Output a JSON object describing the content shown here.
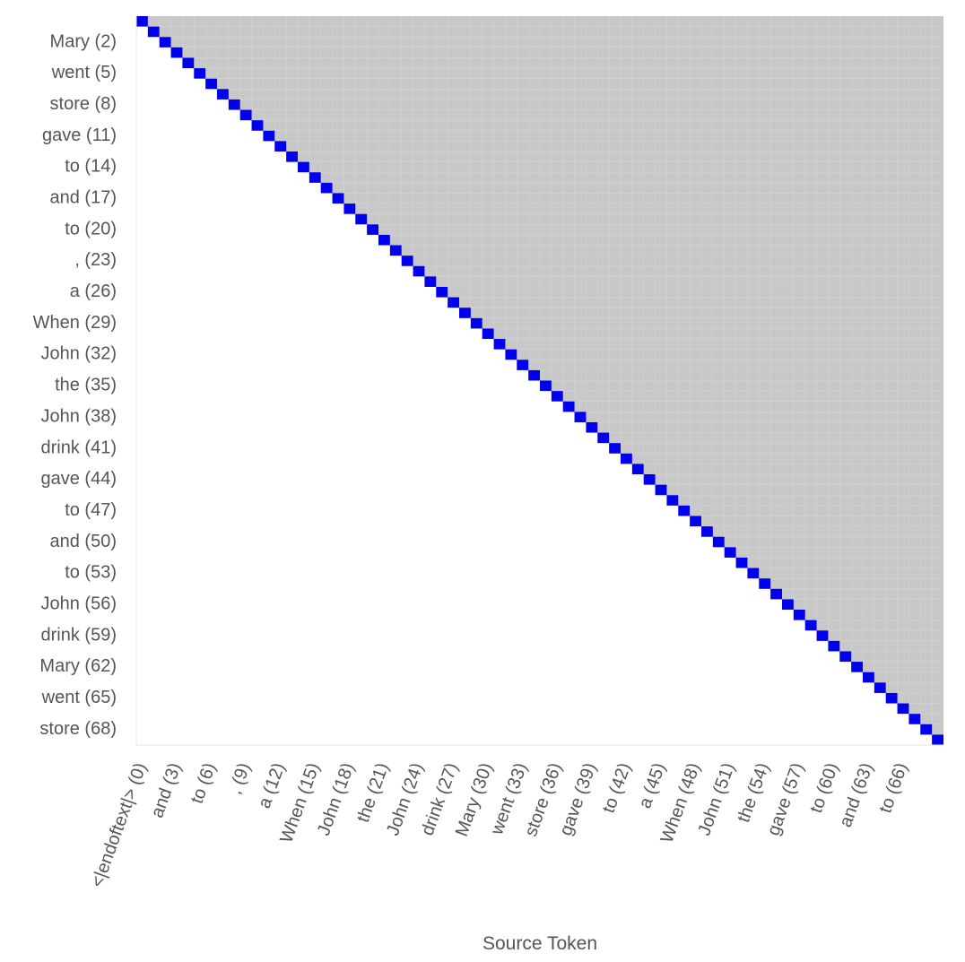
{
  "chart_data": {
    "type": "heatmap",
    "title": "",
    "xlabel": "Source Token",
    "ylabel": "",
    "size": 70,
    "diagonal_value": 1,
    "colors": {
      "diagonal": "#0000ee",
      "masked": "#c8c8c8",
      "lower": "#ffffff",
      "gridline": "#d6d6d6",
      "axis_line": "#e6e6e6",
      "text": "#555555"
    },
    "x_tick_labels": [
      {
        "index": 0,
        "label": "<|endoftext|> (0)"
      },
      {
        "index": 3,
        "label": "and (3)"
      },
      {
        "index": 6,
        "label": "to (6)"
      },
      {
        "index": 9,
        "label": ", (9)"
      },
      {
        "index": 12,
        "label": "a (12)"
      },
      {
        "index": 15,
        "label": "When (15)"
      },
      {
        "index": 18,
        "label": "John (18)"
      },
      {
        "index": 21,
        "label": "the (21)"
      },
      {
        "index": 24,
        "label": "John (24)"
      },
      {
        "index": 27,
        "label": "drink (27)"
      },
      {
        "index": 30,
        "label": "Mary (30)"
      },
      {
        "index": 33,
        "label": "went (33)"
      },
      {
        "index": 36,
        "label": "store (36)"
      },
      {
        "index": 39,
        "label": "gave (39)"
      },
      {
        "index": 42,
        "label": "to (42)"
      },
      {
        "index": 45,
        "label": "a (45)"
      },
      {
        "index": 48,
        "label": "When (48)"
      },
      {
        "index": 51,
        "label": "John (51)"
      },
      {
        "index": 54,
        "label": "the (54)"
      },
      {
        "index": 57,
        "label": "gave (57)"
      },
      {
        "index": 60,
        "label": "to (60)"
      },
      {
        "index": 63,
        "label": "and (63)"
      },
      {
        "index": 66,
        "label": "to (66)"
      }
    ],
    "y_tick_labels": [
      {
        "index": 2,
        "label": "Mary (2)"
      },
      {
        "index": 5,
        "label": "went (5)"
      },
      {
        "index": 8,
        "label": "store (8)"
      },
      {
        "index": 11,
        "label": "gave (11)"
      },
      {
        "index": 14,
        "label": "to (14)"
      },
      {
        "index": 17,
        "label": "and (17)"
      },
      {
        "index": 20,
        "label": "to (20)"
      },
      {
        "index": 23,
        "label": ", (23)"
      },
      {
        "index": 26,
        "label": "a (26)"
      },
      {
        "index": 29,
        "label": "When (29)"
      },
      {
        "index": 32,
        "label": "John (32)"
      },
      {
        "index": 35,
        "label": "the (35)"
      },
      {
        "index": 38,
        "label": "John (38)"
      },
      {
        "index": 41,
        "label": "drink (41)"
      },
      {
        "index": 44,
        "label": "gave (44)"
      },
      {
        "index": 47,
        "label": "to (47)"
      },
      {
        "index": 50,
        "label": "and (50)"
      },
      {
        "index": 53,
        "label": "to (53)"
      },
      {
        "index": 56,
        "label": "John (56)"
      },
      {
        "index": 59,
        "label": "drink (59)"
      },
      {
        "index": 62,
        "label": "Mary (62)"
      },
      {
        "index": 65,
        "label": "went (65)"
      },
      {
        "index": 68,
        "label": "store (68)"
      }
    ]
  }
}
